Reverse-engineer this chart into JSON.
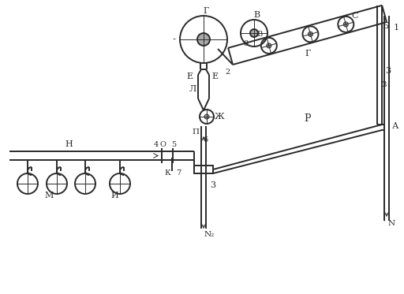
{
  "bg_color": "#ffffff",
  "line_color": "#2a2a2a",
  "lw": 1.4,
  "tlw": 0.7,
  "fig_width": 5.12,
  "fig_height": 3.73,
  "dpi": 100,
  "labels": {
    "G": "Г",
    "V": "В",
    "B": "Б",
    "C": "С",
    "E": "Е",
    "L": "Л",
    "Zh": "Ж",
    "Pi": "П",
    "O": "О",
    "N_h": "Н",
    "M": "М",
    "I": "И",
    "K": "К",
    "R": "Р",
    "A": "А",
    "N": "N"
  }
}
